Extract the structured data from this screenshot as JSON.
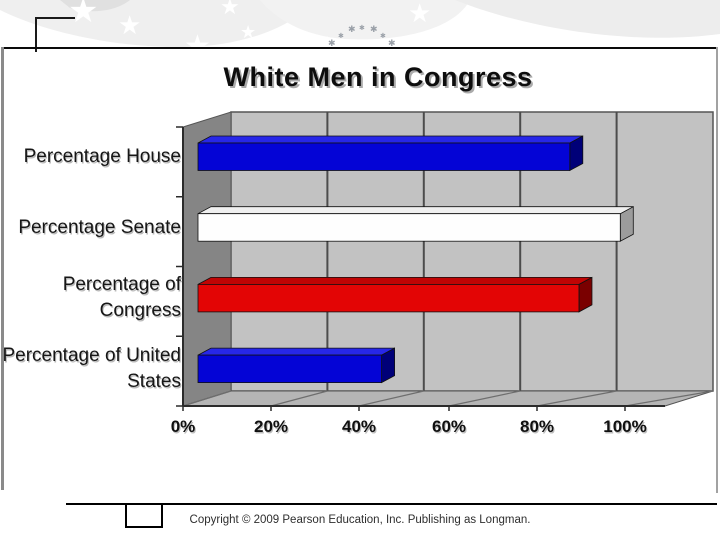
{
  "page": {
    "copyright": "Copyright © 2009 Pearson Education, Inc. Publishing as Longman."
  },
  "chart_data": {
    "type": "bar",
    "orientation": "horizontal",
    "style": "3d",
    "title": "White Men in Congress",
    "categories": [
      "Percentage House",
      "Percentage Senate",
      "Percentage of Congress",
      "Percentage of United States"
    ],
    "values": [
      81,
      92,
      83,
      40
    ],
    "unit": "%",
    "xlim": [
      0,
      100
    ],
    "x_ticks": [
      "0%",
      "20%",
      "40%",
      "60%",
      "80%",
      "100%"
    ],
    "x_tick_values": [
      0,
      20,
      40,
      60,
      80,
      100
    ],
    "grid": true,
    "legend": false,
    "colors": {
      "bars": [
        {
          "front": "#0404d6",
          "top": "#2727e8",
          "side": "#000078"
        },
        {
          "front": "#fefefe",
          "top": "#f0f0f0",
          "side": "#9c9c9c"
        },
        {
          "front": "#e30505",
          "top": "#c00404",
          "side": "#7a0000"
        },
        {
          "front": "#0404d6",
          "top": "#2727e8",
          "side": "#000078"
        }
      ],
      "wall_back": "#c2c2c2",
      "wall_side": "#858585",
      "floor": "#b5b5b5",
      "gridline": "#4c4c4c",
      "axis_line": "#2b2b2b",
      "bar_outline": "#111111"
    }
  }
}
